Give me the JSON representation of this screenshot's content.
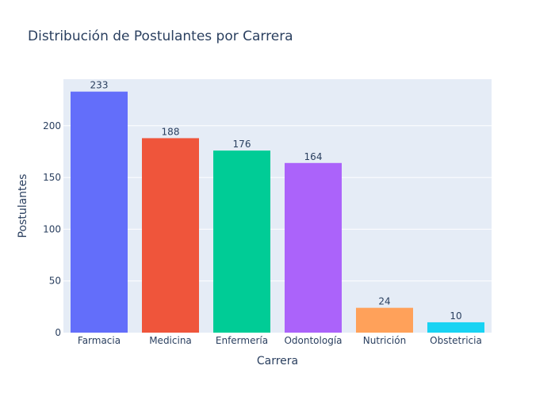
{
  "chart_data": {
    "type": "bar",
    "title": "Distribución de Postulantes por Carrera",
    "xlabel": "Carrera",
    "ylabel": "Postulantes",
    "categories": [
      "Farmacia",
      "Medicina",
      "Enfermería",
      "Odontología",
      "Nutrición",
      "Obstetricia"
    ],
    "values": [
      233,
      188,
      176,
      164,
      24,
      10
    ],
    "value_labels": [
      "233",
      "188",
      "176",
      "164",
      "24",
      "10"
    ],
    "ylim": [
      0,
      245
    ],
    "yticks": [
      0,
      50,
      100,
      150,
      200
    ],
    "ytick_labels": [
      "0",
      "50",
      "100",
      "150",
      "200"
    ],
    "grid": true,
    "colors": [
      "#636efa",
      "#ef553b",
      "#00cc96",
      "#ab63fa",
      "#ffa15a",
      "#19d3f3"
    ],
    "plot_background": "#e5ecf6",
    "gridline_color": "#ffffff",
    "text_color": "#2a3f5f"
  }
}
